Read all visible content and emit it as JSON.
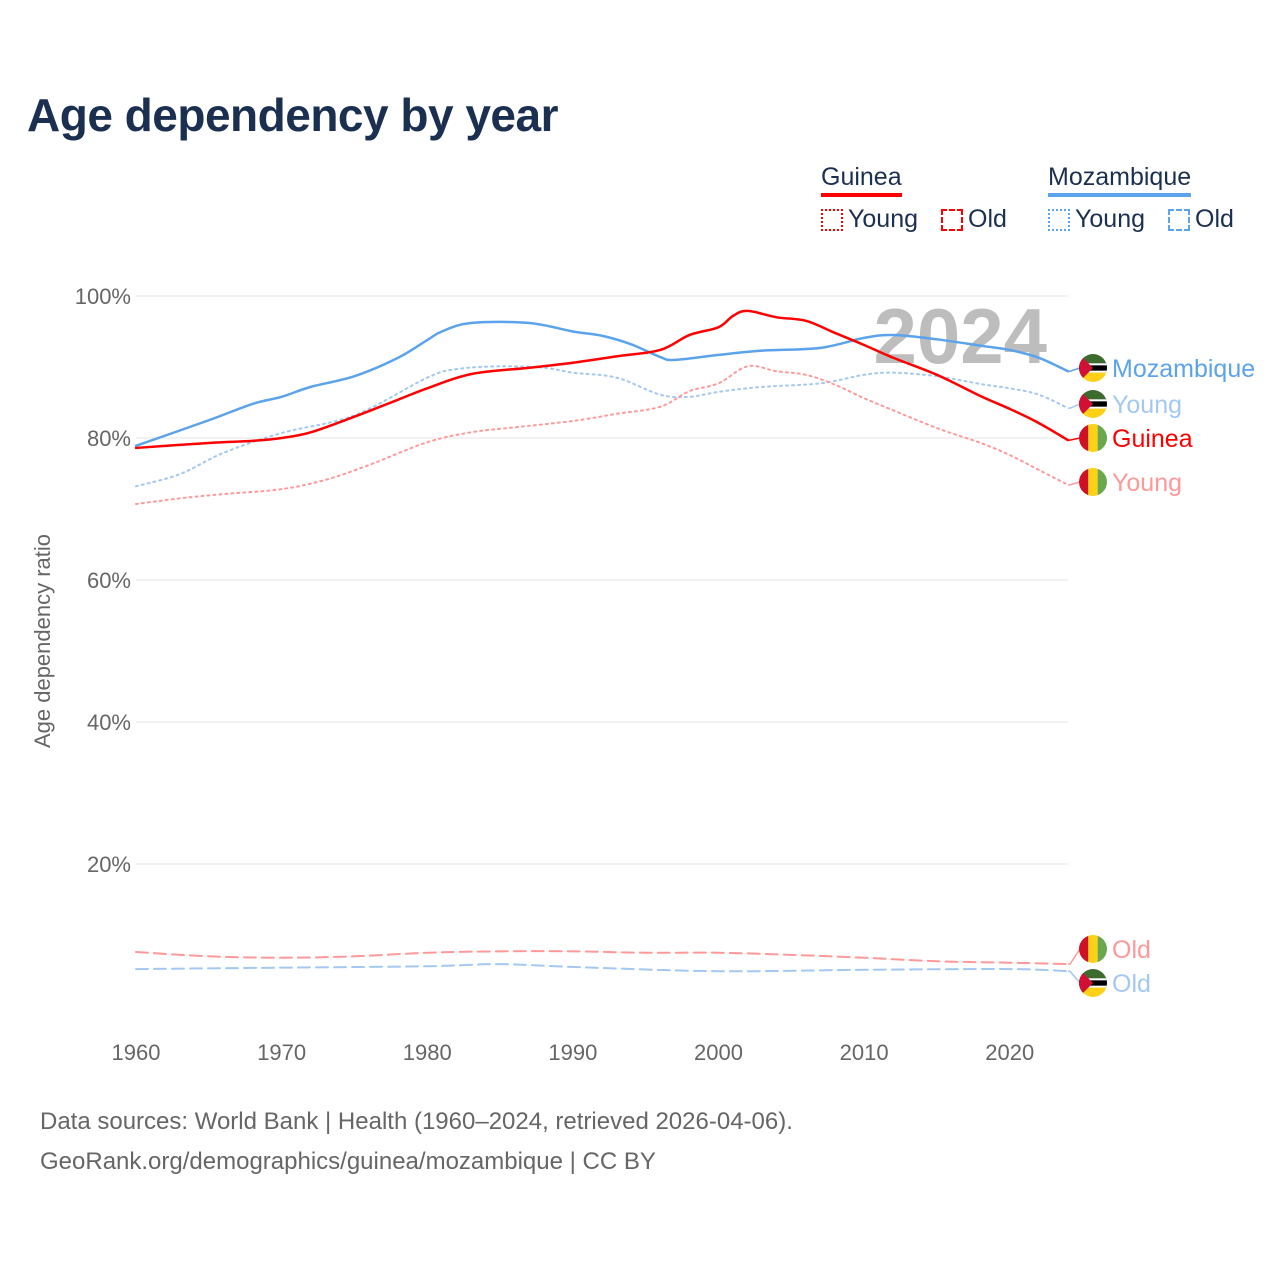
{
  "title": "Age dependency by year",
  "legend": {
    "countries": [
      {
        "name": "Guinea",
        "color": "#ff0000",
        "items": [
          "Young",
          "Old"
        ]
      },
      {
        "name": "Mozambique",
        "color": "#5ba3ea",
        "items": [
          "Young",
          "Old"
        ]
      }
    ]
  },
  "sources": {
    "line1": "Data sources: World Bank | Health (1960–2024, retrieved 2026-04-06).",
    "line2": "GeoRank.org/demographics/guinea/mozambique | CC BY"
  },
  "chart_data": {
    "type": "line",
    "title": "Age dependency by year",
    "xlabel": "",
    "ylabel": "Age dependency ratio",
    "xlim": [
      1960,
      2024
    ],
    "ylim": [
      0,
      100
    ],
    "x_ticks": [
      1960,
      1970,
      1980,
      1990,
      2000,
      2010,
      2020
    ],
    "y_ticks": [
      20,
      40,
      60,
      80,
      100
    ],
    "y_tick_labels": [
      "20%",
      "40%",
      "60%",
      "80%",
      "100%"
    ],
    "grid": true,
    "year_annotation": "2024",
    "series": [
      {
        "name": "Mozambique",
        "label": "Mozambique",
        "country": "Mozambique",
        "kind": "total",
        "color": "#5ba3ea",
        "style": "solid",
        "x": [
          1960,
          1965,
          1968,
          1970,
          1972,
          1975,
          1978,
          1980,
          1981,
          1983,
          1987,
          1990,
          1992,
          1994,
          1996,
          1997,
          2000,
          2003,
          2007,
          2010,
          2012,
          2015,
          2018,
          2020,
          2022,
          2024
        ],
        "y": [
          78.9,
          82.5,
          84.8,
          85.8,
          87.2,
          88.7,
          91.3,
          93.8,
          95.0,
          96.2,
          96.2,
          95.0,
          94.4,
          93.2,
          91.4,
          91.0,
          91.7,
          92.3,
          92.7,
          94.1,
          94.5,
          93.9,
          93.0,
          92.4,
          91.3,
          89.4
        ]
      },
      {
        "name": "Mozambique Young",
        "label": "Young",
        "country": "Mozambique",
        "kind": "young",
        "color": "#a3c8f2",
        "style": "dotted",
        "x": [
          1960,
          1963,
          1966,
          1970,
          1975,
          1980,
          1982,
          1985,
          1988,
          1990,
          1993,
          1996,
          1998,
          2000,
          2003,
          2007,
          2010,
          2012,
          2015,
          2018,
          2020,
          2022,
          2024
        ],
        "y": [
          73.2,
          74.9,
          77.9,
          80.7,
          83.2,
          88.5,
          89.7,
          90.1,
          89.9,
          89.2,
          88.5,
          86.1,
          85.8,
          86.5,
          87.2,
          87.7,
          88.9,
          89.2,
          88.7,
          87.6,
          87.0,
          86.1,
          84.2
        ]
      },
      {
        "name": "Guinea",
        "label": "Guinea",
        "country": "Guinea",
        "kind": "total",
        "color": "#ff0000",
        "style": "solid",
        "x": [
          1960,
          1965,
          1968,
          1970,
          1972,
          1975,
          1978,
          1980,
          1983,
          1987,
          1990,
          1993,
          1996,
          1998,
          2000,
          2001,
          2002,
          2004,
          2006,
          2008,
          2010,
          2012,
          2015,
          2018,
          2020,
          2022,
          2024
        ],
        "y": [
          78.6,
          79.3,
          79.6,
          80.0,
          80.8,
          83.0,
          85.4,
          87.0,
          89.0,
          89.9,
          90.6,
          91.5,
          92.4,
          94.5,
          95.6,
          97.2,
          97.9,
          97.0,
          96.5,
          94.8,
          93.1,
          91.3,
          88.9,
          85.9,
          84.1,
          82.1,
          79.7
        ]
      },
      {
        "name": "Guinea Young",
        "label": "Young",
        "country": "Guinea",
        "kind": "young",
        "color": "#ff9999",
        "style": "dotted",
        "x": [
          1960,
          1963,
          1966,
          1970,
          1973,
          1976,
          1980,
          1983,
          1986,
          1990,
          1993,
          1996,
          1998,
          2000,
          2002,
          2004,
          2006,
          2008,
          2010,
          2012,
          2015,
          2018,
          2020,
          2022,
          2024
        ],
        "y": [
          70.7,
          71.5,
          72.1,
          72.8,
          74.1,
          76.2,
          79.4,
          80.8,
          81.5,
          82.4,
          83.4,
          84.4,
          86.6,
          87.7,
          90.1,
          89.4,
          88.9,
          87.5,
          85.6,
          83.9,
          81.4,
          79.3,
          77.6,
          75.5,
          73.4
        ]
      },
      {
        "name": "Guinea Old",
        "label": "Old",
        "country": "Guinea",
        "kind": "old",
        "color": "#ff9999",
        "style": "dashed",
        "x": [
          1960,
          1965,
          1970,
          1975,
          1980,
          1985,
          1990,
          1995,
          2000,
          2005,
          2010,
          2015,
          2020,
          2024
        ],
        "y": [
          7.6,
          7.0,
          6.8,
          7.0,
          7.5,
          7.7,
          7.7,
          7.5,
          7.5,
          7.2,
          6.8,
          6.3,
          6.1,
          5.9
        ]
      },
      {
        "name": "Mozambique Old",
        "label": "Old",
        "country": "Mozambique",
        "kind": "old",
        "color": "#a3c8f2",
        "style": "dashed",
        "x": [
          1960,
          1970,
          1980,
          1985,
          1990,
          2000,
          2010,
          2020,
          2024
        ],
        "y": [
          5.2,
          5.4,
          5.6,
          5.9,
          5.5,
          4.9,
          5.1,
          5.2,
          4.9
        ]
      }
    ]
  }
}
